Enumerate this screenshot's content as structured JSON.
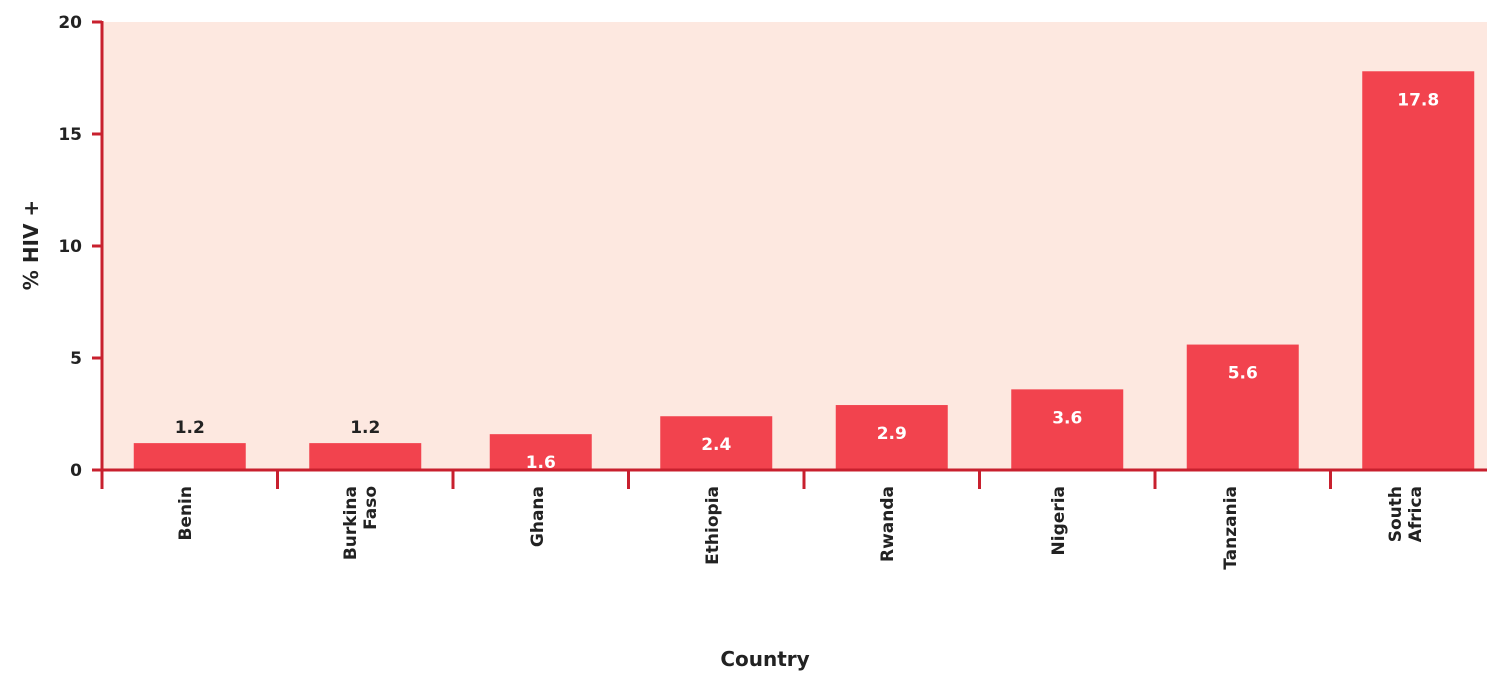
{
  "chart_data": {
    "type": "bar",
    "categories": [
      "Benin",
      "Burkina Faso",
      "Ghana",
      "Ethiopia",
      "Rwanda",
      "Nigeria",
      "Tanzania",
      "South Africa"
    ],
    "category_lines": [
      [
        "Benin"
      ],
      [
        "Burkina",
        "Faso"
      ],
      [
        "Ghana"
      ],
      [
        "Ethiopia"
      ],
      [
        "Rwanda"
      ],
      [
        "Nigeria"
      ],
      [
        "Tanzania"
      ],
      [
        "South",
        "Africa"
      ]
    ],
    "values": [
      1.2,
      1.2,
      1.6,
      2.4,
      2.9,
      3.6,
      5.6,
      17.8
    ],
    "data_labels": [
      "1.2",
      "1.2",
      "1.6",
      "2.4",
      "2.9",
      "3.6",
      "5.6",
      "17.8"
    ],
    "label_position": [
      "above",
      "above",
      "inside",
      "inside",
      "inside",
      "inside",
      "inside",
      "inside"
    ],
    "xlabel": "Country",
    "ylabel": "% HIV +",
    "ylim": [
      0,
      20
    ],
    "yticks": [
      "0",
      "5",
      "10",
      "15",
      "20"
    ],
    "grid": false,
    "colors": {
      "bar": "#f2434e",
      "plot_background": "#fde8e0",
      "axis": "#c8202e",
      "label_inside": "#ffffff",
      "label_above": "#222222"
    }
  }
}
